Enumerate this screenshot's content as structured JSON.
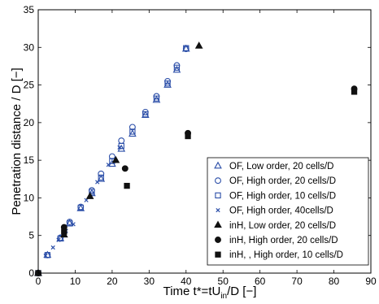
{
  "chart_data": {
    "type": "scatter",
    "title": "",
    "xlabel": "Time t*=tU_in/D [−]",
    "xlabel_parts": {
      "main": "Time t*=tU",
      "sub": "in",
      "tail": "/D [−]"
    },
    "ylabel": "Penetration distance / D [−]",
    "xlim": [
      0,
      90
    ],
    "ylim": [
      0,
      35
    ],
    "xticks": [
      0,
      10,
      20,
      30,
      40,
      50,
      60,
      70,
      80,
      90
    ],
    "yticks": [
      0,
      5,
      10,
      15,
      20,
      25,
      30,
      35
    ],
    "grid": false,
    "legend_position": "bottom-right",
    "series": [
      {
        "name": "OF, Low order, 20 cells/D",
        "marker": "triangle-open",
        "color": "#2b4ea8",
        "x": [
          0,
          2.5,
          6,
          8.5,
          11.5,
          14.5,
          17,
          20,
          22.5,
          25.5,
          29,
          32,
          35,
          37.5,
          40
        ],
        "y": [
          0,
          2.4,
          4.6,
          6.6,
          8.6,
          10.6,
          12.5,
          14.5,
          16.5,
          18.5,
          21,
          23,
          25,
          27,
          29.8
        ]
      },
      {
        "name": "OF, High order, 20 cells/D",
        "marker": "circle-open",
        "color": "#2b4ea8",
        "x": [
          0,
          2.5,
          6,
          8.5,
          11.5,
          14.5,
          17,
          20,
          22.5,
          25.5,
          29,
          32,
          35,
          37.5,
          40
        ],
        "y": [
          0,
          2.4,
          4.7,
          6.8,
          8.8,
          11,
          13.2,
          15.5,
          17.6,
          19.4,
          21.4,
          23.5,
          25.5,
          27.6,
          29.8
        ]
      },
      {
        "name": "OF, High order, 10 cells/D",
        "marker": "square-open",
        "color": "#2b4ea8",
        "x": [
          0,
          2.5,
          6,
          8.5,
          11.5,
          14.5,
          17,
          20,
          22.5,
          25.5,
          29,
          32,
          35,
          37.5,
          40
        ],
        "y": [
          0,
          2.4,
          4.6,
          6.6,
          8.7,
          10.8,
          12.7,
          14.9,
          16.9,
          18.8,
          21.1,
          23.2,
          25.2,
          27.3,
          29.9
        ]
      },
      {
        "name": "OF, High order, 40cells/D",
        "marker": "x",
        "color": "#2b4ea8",
        "x": [
          2,
          4,
          5.5,
          7.5,
          9.5,
          13,
          16,
          19,
          22
        ],
        "y": [
          2.3,
          3.4,
          4.4,
          5.6,
          6.5,
          9.7,
          12.1,
          14.4,
          16.7
        ]
      },
      {
        "name": "inH,  Low order, 20 cells/D",
        "marker": "triangle-filled",
        "color": "#111111",
        "x": [
          0,
          7,
          14,
          21,
          43.5
        ],
        "y": [
          0,
          5.1,
          10.2,
          15,
          30.2
        ]
      },
      {
        "name": "inH,  High order, 20 cells/D",
        "marker": "circle-filled",
        "color": "#111111",
        "x": [
          0,
          7,
          23.5,
          40.5,
          85.5
        ],
        "y": [
          0,
          6.1,
          13.9,
          18.6,
          24.5
        ]
      },
      {
        "name": "inH,  , High order, 10 cells/D",
        "marker": "square-filled",
        "color": "#111111",
        "x": [
          0,
          7,
          24,
          40.5,
          85.5
        ],
        "y": [
          0,
          5.5,
          11.6,
          18.2,
          24.1
        ]
      }
    ]
  }
}
